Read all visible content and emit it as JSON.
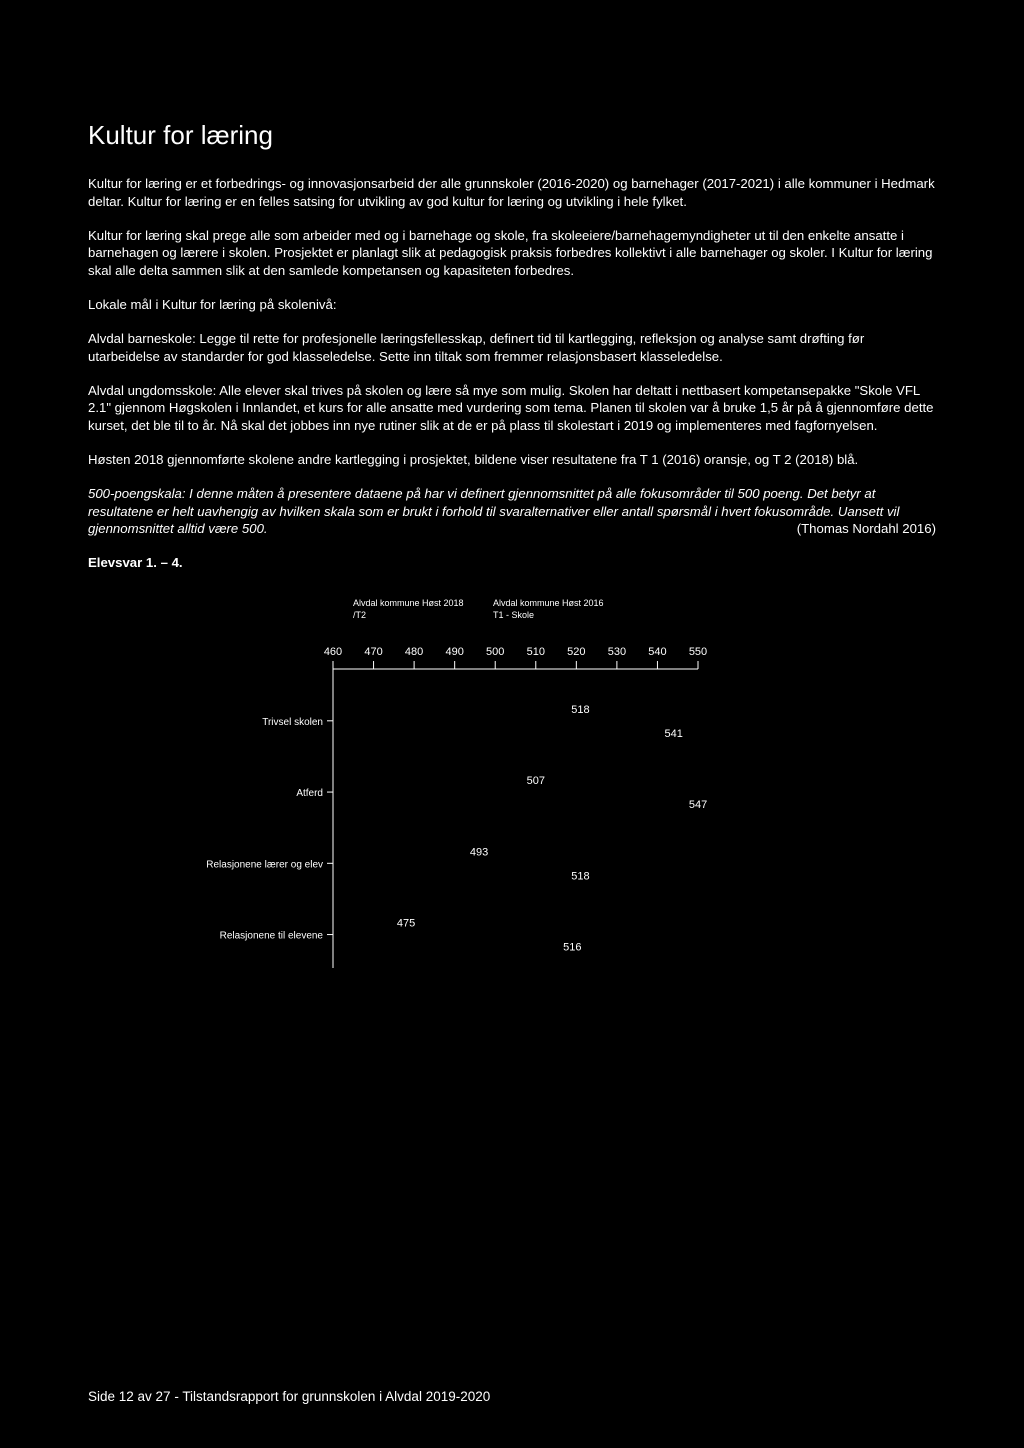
{
  "title": "Kultur for læring",
  "paragraphs": {
    "p1": "Kultur for læring er et forbedrings- og innovasjonsarbeid der alle grunnskoler (2016-2020) og barnehager (2017-2021) i alle kommuner i Hedmark deltar. Kultur for læring er en felles satsing for utvikling av god kultur for læring og utvikling i hele fylket.",
    "p2": "Kultur for læring skal prege alle som arbeider med og i barnehage og skole, fra skoleeiere/barnehagemyndigheter ut til den enkelte ansatte i barnehagen og lærere i skolen. Prosjektet er planlagt slik at pedagogisk praksis forbedres kollektivt i alle barnehager og skoler. I Kultur for læring skal alle delta sammen slik at den samlede kompetansen og kapasiteten forbedres.",
    "p3": "Lokale mål i Kultur for læring på skolenivå:",
    "p4": "Alvdal barneskole: Legge til rette for profesjonelle læringsfellesskap, definert tid til kartlegging, refleksjon og analyse samt drøfting før utarbeidelse av standarder for god klasseledelse. Sette inn tiltak som fremmer relasjonsbasert klasseledelse.",
    "p5": "Alvdal ungdomsskole: Alle elever skal trives på skolen og lære så mye som mulig. Skolen har deltatt i nettbasert kompetansepakke \"Skole VFL 2.1\" gjennom Høgskolen i Innlandet, et kurs for alle ansatte med vurdering som tema. Planen til skolen var å bruke 1,5 år på å gjennomføre dette kurset, det ble til to år. Nå skal det jobbes inn nye rutiner slik at de er på plass til skolestart i 2019 og implementeres med fagfornyelsen.",
    "p6": "Høsten 2018 gjennomførte skolene andre kartlegging i prosjektet, bildene viser resultatene fra T 1 (2016) oransje, og T 2 (2018) blå.",
    "p7": "500-poengskala: I denne måten å presentere dataene på har vi definert gjennomsnittet på alle fokusområder til 500 poeng. Det betyr at resultatene er helt uavhengig av hvilken skala som er brukt i forhold til svaralternativer eller antall spørsmål i hvert fokusområde. Uansett vil gjennomsnittet alltid være 500.",
    "p7_attrib": "(Thomas Nordahl 2016)",
    "p8": "Elevsvar 1. – 4."
  },
  "chart": {
    "type": "bar-horizontal-grouped",
    "legend": [
      {
        "text_line1": "Alvdal kommune Høst 2018",
        "text_line2": "/T2",
        "color_note": ""
      },
      {
        "text_line1": "Alvdal kommune Høst 2016",
        "text_line2": "T1 - Skole",
        "color_note": ""
      }
    ],
    "x_axis": {
      "min": 460,
      "max": 550,
      "ticks": [
        460,
        470,
        480,
        490,
        500,
        510,
        520,
        530,
        540,
        550
      ]
    },
    "categories": [
      "Trivsel skolen",
      "Atferd",
      "Relasjonene lærer og elev",
      "Relasjonene til elevene"
    ],
    "series": [
      {
        "name": "T2_2018",
        "values": [
          518,
          507,
          493,
          475
        ]
      },
      {
        "name": "T1_2016",
        "values": [
          541,
          547,
          518,
          516
        ]
      }
    ],
    "colors": {
      "axis": "#ffffff",
      "text": "#ffffff",
      "background": "#000000"
    },
    "label_fontsize": 11,
    "tick_fontsize": 11,
    "legend_fontsize": 9,
    "y_category_fontsize": 10
  },
  "footer": "Side 12 av 27 - Tilstandsrapport for grunnskolen i Alvdal 2019-2020"
}
